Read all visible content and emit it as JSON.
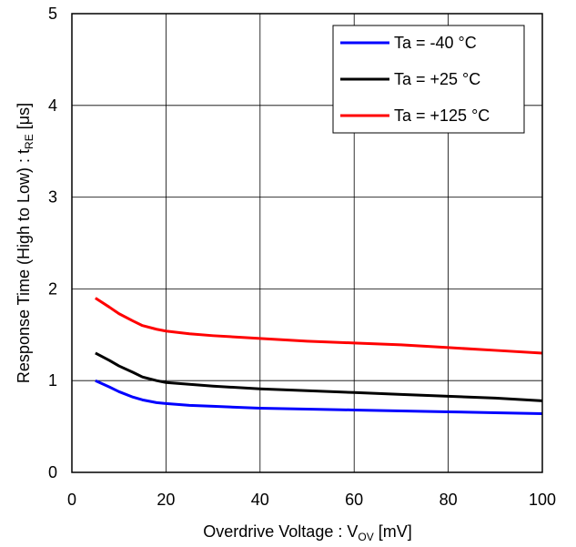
{
  "chart_data": {
    "type": "line",
    "xlabel_parts": [
      "Overdrive Voltage : V",
      "OV",
      " [mV]"
    ],
    "ylabel_parts": [
      "Response Time (High to Low) : t",
      "RE",
      " [μs]"
    ],
    "xlim": [
      0,
      100
    ],
    "ylim": [
      0,
      5
    ],
    "xticks": [
      0,
      20,
      40,
      60,
      80,
      100
    ],
    "yticks": [
      0,
      1,
      2,
      3,
      4,
      5
    ],
    "grid": true,
    "legend_position": "top-right",
    "series": [
      {
        "name": "Ta = -40 °C",
        "color": "#0000ff",
        "x": [
          5,
          8,
          10,
          13,
          15,
          18,
          20,
          25,
          30,
          40,
          50,
          60,
          70,
          80,
          90,
          100
        ],
        "y": [
          1.0,
          0.93,
          0.88,
          0.82,
          0.79,
          0.76,
          0.75,
          0.73,
          0.72,
          0.7,
          0.69,
          0.68,
          0.67,
          0.66,
          0.65,
          0.64
        ]
      },
      {
        "name": "Ta = +25 °C",
        "color": "#000000",
        "x": [
          5,
          8,
          10,
          13,
          15,
          18,
          20,
          25,
          30,
          40,
          50,
          60,
          70,
          80,
          90,
          100
        ],
        "y": [
          1.3,
          1.22,
          1.16,
          1.09,
          1.04,
          1.0,
          0.98,
          0.96,
          0.94,
          0.91,
          0.89,
          0.87,
          0.85,
          0.83,
          0.81,
          0.78
        ]
      },
      {
        "name": "Ta = +125 °C",
        "color": "#ff0000",
        "x": [
          5,
          8,
          10,
          13,
          15,
          18,
          20,
          25,
          30,
          40,
          50,
          60,
          70,
          80,
          90,
          100
        ],
        "y": [
          1.9,
          1.8,
          1.73,
          1.65,
          1.6,
          1.56,
          1.54,
          1.51,
          1.49,
          1.46,
          1.43,
          1.41,
          1.39,
          1.36,
          1.33,
          1.3
        ]
      }
    ]
  }
}
